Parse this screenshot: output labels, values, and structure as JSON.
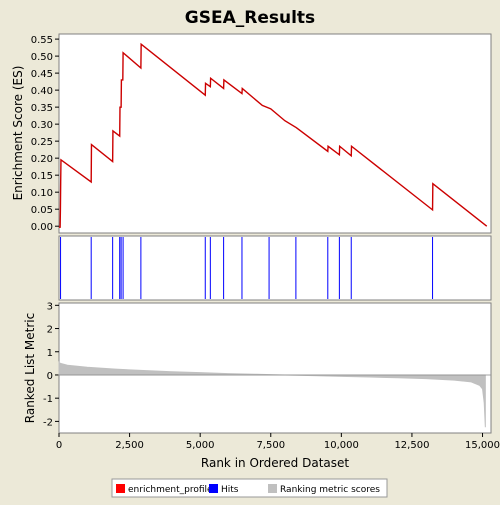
{
  "chart_data": {
    "title": "GSEA_Results",
    "xlabel": "Rank in Ordered Dataset",
    "xlim": [
      0,
      15300
    ],
    "xticks": [
      0,
      2500,
      5000,
      7500,
      10000,
      12500,
      15000
    ],
    "xtick_labels": [
      "0",
      "2,500",
      "5,000",
      "7,500",
      "10,000",
      "12,500",
      "15,000"
    ],
    "panels": [
      {
        "type": "line",
        "ylabel": "Enrichment Score (ES)",
        "ylim": [
          -0.02,
          0.565
        ],
        "yticks": [
          0,
          0.05,
          0.1,
          0.15,
          0.2,
          0.25,
          0.3,
          0.35,
          0.4,
          0.45,
          0.5,
          0.55
        ],
        "ytick_labels": [
          "0.00",
          "0.05",
          "0.10",
          "0.15",
          "0.20",
          "0.25",
          "0.30",
          "0.35",
          "0.40",
          "0.45",
          "0.50",
          "0.55"
        ],
        "color": "#cc0000",
        "series": [
          {
            "name": "enrichment_profile",
            "points": [
              [
                0,
                -0.003
              ],
              [
                40,
                -0.003
              ],
              [
                50,
                0.05
              ],
              [
                60,
                0.13
              ],
              [
                70,
                0.195
              ],
              [
                1140,
                0.13
              ],
              [
                1150,
                0.24
              ],
              [
                1900,
                0.19
              ],
              [
                1910,
                0.28
              ],
              [
                2150,
                0.265
              ],
              [
                2160,
                0.35
              ],
              [
                2200,
                0.35
              ],
              [
                2210,
                0.43
              ],
              [
                2260,
                0.43
              ],
              [
                2270,
                0.51
              ],
              [
                2900,
                0.465
              ],
              [
                2910,
                0.535
              ],
              [
                5180,
                0.385
              ],
              [
                5190,
                0.42
              ],
              [
                5360,
                0.41
              ],
              [
                5370,
                0.435
              ],
              [
                5830,
                0.405
              ],
              [
                5840,
                0.43
              ],
              [
                6480,
                0.39
              ],
              [
                6490,
                0.405
              ],
              [
                7200,
                0.355
              ],
              [
                7500,
                0.345
              ],
              [
                8000,
                0.31
              ],
              [
                8400,
                0.29
              ],
              [
                9520,
                0.22
              ],
              [
                9530,
                0.235
              ],
              [
                9930,
                0.21
              ],
              [
                9940,
                0.235
              ],
              [
                10350,
                0.207
              ],
              [
                10360,
                0.235
              ],
              [
                13230,
                0.048
              ],
              [
                13240,
                0.125
              ],
              [
                15150,
                0.0
              ]
            ]
          }
        ]
      },
      {
        "type": "hits",
        "color": "#0000ff",
        "series": [
          {
            "name": "Hits",
            "x": [
              55,
              1140,
              1900,
              2150,
              2200,
              2270,
              2900,
              5180,
              5360,
              5830,
              6480,
              7440,
              8390,
              9520,
              9930,
              10350,
              13230
            ]
          }
        ]
      },
      {
        "type": "area",
        "ylabel": "Ranked List Metric",
        "ylim": [
          -2.5,
          3.1
        ],
        "yticks": [
          -2,
          -1,
          0,
          1,
          2,
          3
        ],
        "ytick_labels": [
          "-2",
          "-1",
          "0",
          "1",
          "2",
          "3"
        ],
        "color": "#c0c0c0",
        "series": [
          {
            "name": "Ranking metric scores",
            "points": [
              [
                0,
                0.55
              ],
              [
                50,
                0.5
              ],
              [
                300,
                0.42
              ],
              [
                1000,
                0.33
              ],
              [
                2000,
                0.25
              ],
              [
                3000,
                0.19
              ],
              [
                4000,
                0.14
              ],
              [
                5000,
                0.1
              ],
              [
                6000,
                0.06
              ],
              [
                7000,
                0.03
              ],
              [
                8000,
                0.0
              ],
              [
                9000,
                -0.03
              ],
              [
                10000,
                -0.06
              ],
              [
                11000,
                -0.09
              ],
              [
                12000,
                -0.12
              ],
              [
                13000,
                -0.16
              ],
              [
                14000,
                -0.22
              ],
              [
                14600,
                -0.3
              ],
              [
                14900,
                -0.45
              ],
              [
                15000,
                -0.6
              ],
              [
                15060,
                -1.2
              ],
              [
                15100,
                -2.25
              ]
            ]
          }
        ]
      }
    ],
    "legend": {
      "position": "bottom",
      "items": [
        {
          "label": "enrichment_profile",
          "color": "#ff0000"
        },
        {
          "label": "Hits",
          "color": "#0000ff"
        },
        {
          "label": "Ranking metric scores",
          "color": "#c0c0c0"
        }
      ]
    }
  }
}
